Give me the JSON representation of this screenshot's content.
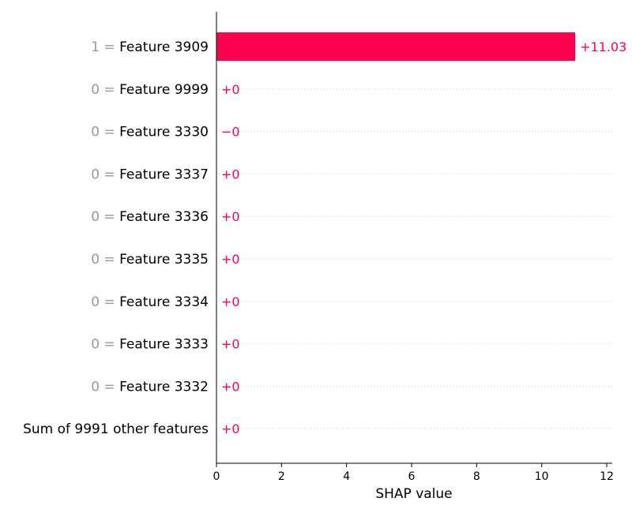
{
  "chart_data": {
    "type": "bar",
    "orientation": "horizontal",
    "xlabel": "SHAP value",
    "xlim": [
      0,
      12
    ],
    "x_ticks": [
      "0",
      "2",
      "4",
      "6",
      "8",
      "10",
      "12"
    ],
    "colors": {
      "positive": "#ff0051",
      "neutral_text": "#999999",
      "gridline": "#cccccc"
    },
    "rows": [
      {
        "feature_value": "1",
        "feature_name": "Feature 3909",
        "value": 11.03,
        "label": "+11.03"
      },
      {
        "feature_value": "0",
        "feature_name": "Feature 9999",
        "value": 0,
        "label": "+0"
      },
      {
        "feature_value": "0",
        "feature_name": "Feature 3330",
        "value": 0,
        "label": "−0"
      },
      {
        "feature_value": "0",
        "feature_name": "Feature 3337",
        "value": 0,
        "label": "+0"
      },
      {
        "feature_value": "0",
        "feature_name": "Feature 3336",
        "value": 0,
        "label": "+0"
      },
      {
        "feature_value": "0",
        "feature_name": "Feature 3335",
        "value": 0,
        "label": "+0"
      },
      {
        "feature_value": "0",
        "feature_name": "Feature 3334",
        "value": 0,
        "label": "+0"
      },
      {
        "feature_value": "0",
        "feature_name": "Feature 3333",
        "value": 0,
        "label": "+0"
      },
      {
        "feature_value": "0",
        "feature_name": "Feature 3332",
        "value": 0,
        "label": "+0"
      },
      {
        "feature_value": "",
        "feature_name": "Sum of 9991 other features",
        "value": 0,
        "label": "+0"
      }
    ]
  }
}
